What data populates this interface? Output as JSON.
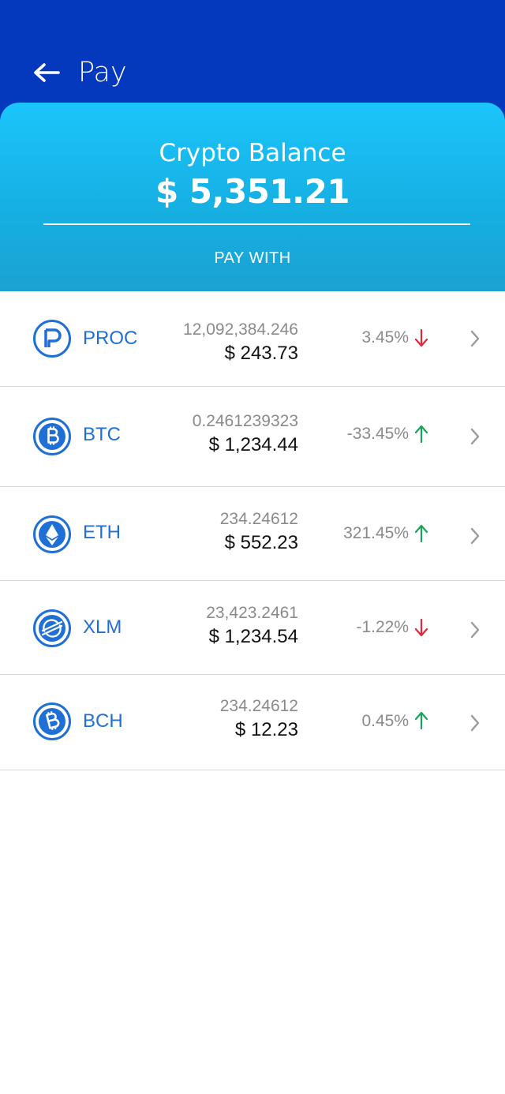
{
  "header": {
    "title": "Pay",
    "back_icon": "arrow-left-icon"
  },
  "balance": {
    "label": "Crypto Balance",
    "value": "$ 5,351.21",
    "section_label": "PAY WITH"
  },
  "colors": {
    "header_bg": "#0438bd",
    "card_gradient_top": "#1bc5fb",
    "card_gradient_bottom": "#1aa2d2",
    "symbol": "#1f6fd6",
    "down": "#e0283a",
    "up": "#18a35a"
  },
  "coins": [
    {
      "symbol": "PROC",
      "amount": "12,092,384.246",
      "fiat": "$ 243.73",
      "change": "3.45%",
      "direction": "down",
      "icon": "proc-coin-icon"
    },
    {
      "symbol": "BTC",
      "amount": "0.2461239323",
      "fiat": "$ 1,234.44",
      "change": "-33.45%",
      "direction": "up",
      "icon": "bitcoin-icon"
    },
    {
      "symbol": "ETH",
      "amount": "234.24612",
      "fiat": "$ 552.23",
      "change": "321.45%",
      "direction": "up",
      "icon": "ethereum-icon"
    },
    {
      "symbol": "XLM",
      "amount": "23,423.2461",
      "fiat": "$ 1,234.54",
      "change": "-1.22%",
      "direction": "down",
      "icon": "stellar-icon"
    },
    {
      "symbol": "BCH",
      "amount": "234.24612",
      "fiat": "$ 12.23",
      "change": "0.45%",
      "direction": "up",
      "icon": "bitcoin-cash-icon"
    }
  ]
}
